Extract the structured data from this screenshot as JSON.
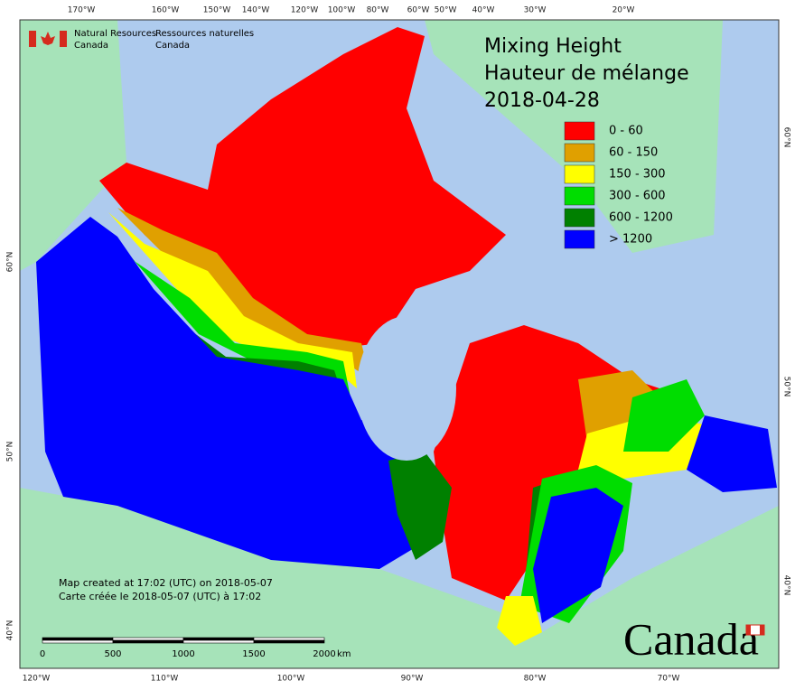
{
  "agency": {
    "en": [
      "Natural Resources",
      "Canada"
    ],
    "fr": [
      "Ressources naturelles",
      "Canada"
    ]
  },
  "title": [
    "Mixing Height",
    "Hauteur de mélange",
    "2018-04-28"
  ],
  "legend": [
    {
      "label": "0 - 60",
      "color": "#ff0000"
    },
    {
      "label": "60 - 150",
      "color": "#e0a000"
    },
    {
      "label": "150 - 300",
      "color": "#ffff00"
    },
    {
      "label": "300 - 600",
      "color": "#00dd00"
    },
    {
      "label": "600 - 1200",
      "color": "#008000"
    },
    {
      "label": "> 1200",
      "color": "#0000ff"
    }
  ],
  "top_labels": [
    "170°W",
    "160°W",
    "150°W",
    "140°W",
    "120°W",
    "100°W",
    "80°W",
    "60°W",
    "50°W",
    "40°W",
    "30°W",
    "20°W"
  ],
  "bottom_labels": [
    "120°W",
    "110°W",
    "100°W",
    "90°W",
    "80°W",
    "70°W"
  ],
  "left_labels": [
    "60°N",
    "50°N",
    "40°N"
  ],
  "right_labels": [
    "60°N",
    "50°N",
    "40°N"
  ],
  "notes": [
    "Map created at 17:02 (UTC) on 2018-05-07",
    "Carte créée le 2018-05-07 (UTC) à 17:02"
  ],
  "scale": {
    "ticks": [
      "0",
      "500",
      "1000",
      "1500",
      "2000"
    ],
    "unit": "km"
  },
  "wordmark": "Canada"
}
